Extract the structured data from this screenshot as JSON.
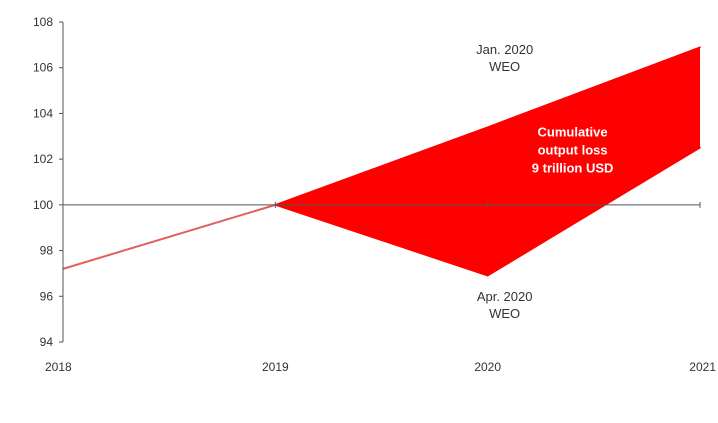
{
  "chart_data": {
    "type": "area",
    "title": "",
    "xlabel": "",
    "ylabel": "",
    "x": [
      2018,
      2019,
      2020,
      2021
    ],
    "x_tick_labels": [
      "2018",
      "2019",
      "2020",
      "2021"
    ],
    "y_tick_labels": [
      "94",
      "96",
      "98",
      "100",
      "102",
      "104",
      "106",
      "108"
    ],
    "xlim": [
      2018,
      2021
    ],
    "ylim": [
      94,
      108
    ],
    "grid": false,
    "baseline": 100,
    "series": [
      {
        "x": [
          2018,
          2019
        ],
        "values": [
          97.2,
          100.0
        ],
        "color": "#e06060"
      },
      {
        "x": [
          2019,
          2020,
          2021
        ],
        "values": [
          100.0,
          103.4,
          106.9
        ],
        "color": "#ff0000"
      },
      {
        "x": [
          2019,
          2020,
          2021
        ],
        "values": [
          100.0,
          96.9,
          102.5
        ],
        "color": "#ff0000"
      }
    ],
    "annotations": [
      {
        "id": "jan",
        "lines": [
          "Jan. 2020",
          "WEO"
        ]
      },
      {
        "id": "apr",
        "lines": [
          "Apr. 2020",
          "WEO"
        ]
      },
      {
        "id": "loss",
        "lines": [
          "Cumulative",
          "output loss",
          "9 trillion USD"
        ]
      }
    ],
    "colors": {
      "fill": "#ff0000",
      "historical_line": "#e06060",
      "axis": "#555555"
    }
  }
}
